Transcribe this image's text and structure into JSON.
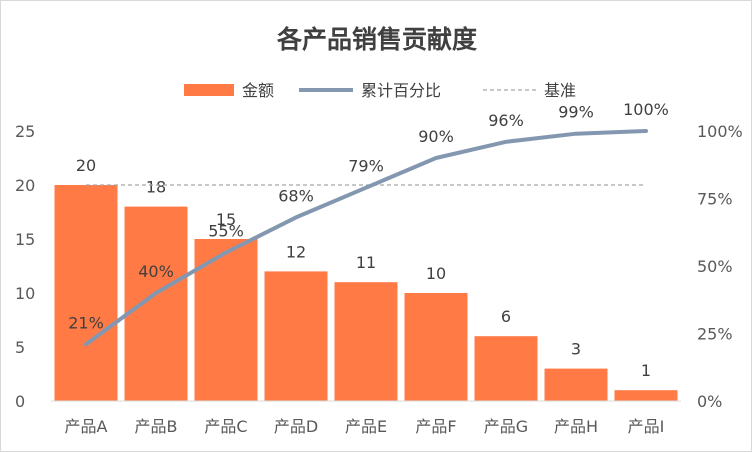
{
  "chart_data": {
    "type": "bar",
    "title": "各产品销售贡献度",
    "categories": [
      "产品A",
      "产品B",
      "产品C",
      "产品D",
      "产品E",
      "产品F",
      "产品G",
      "产品H",
      "产品I"
    ],
    "series": [
      {
        "name": "金额",
        "type": "bar",
        "axis": "left",
        "color": "#FF7A45",
        "values": [
          20,
          18,
          15,
          12,
          11,
          10,
          6,
          3,
          1
        ],
        "labels": [
          "20",
          "18",
          "15",
          "12",
          "11",
          "10",
          "6",
          "3",
          "1"
        ]
      },
      {
        "name": "累计百分比",
        "type": "line",
        "axis": "right",
        "color": "#8497B0",
        "values": [
          21,
          40,
          55,
          68,
          79,
          90,
          96,
          99,
          100
        ],
        "labels": [
          "21%",
          "40%",
          "55%",
          "68%",
          "79%",
          "90%",
          "96%",
          "99%",
          "100%"
        ]
      },
      {
        "name": "基准",
        "type": "reference",
        "axis": "right",
        "color": "#A6A6A6",
        "value": 80
      }
    ],
    "y_left": {
      "range": [
        0,
        25
      ],
      "ticks": [
        "0",
        "5",
        "10",
        "15",
        "20",
        "25"
      ]
    },
    "y_right": {
      "range": [
        0,
        100
      ],
      "ticks": [
        "0%",
        "25%",
        "50%",
        "75%",
        "100%"
      ]
    },
    "legend": {
      "position": "top-center",
      "items": [
        "金额",
        "累计百分比",
        "基准"
      ]
    },
    "grid": false
  }
}
